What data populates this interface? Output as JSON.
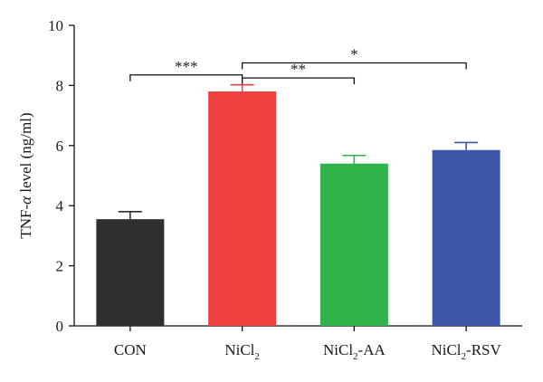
{
  "chart_data": {
    "type": "bar",
    "title": "",
    "xlabel": "",
    "ylabel": {
      "prefix": "TNF-",
      "symbol": "α",
      "suffix": " level (ng/ml)"
    },
    "ylim": [
      0,
      10
    ],
    "yticks": [
      0,
      2,
      4,
      6,
      8,
      10
    ],
    "grid": false,
    "categories": [
      {
        "base": "CON",
        "sub": "",
        "suffix": ""
      },
      {
        "base": "NiCl",
        "sub": "2",
        "suffix": ""
      },
      {
        "base": "NiCl",
        "sub": "2",
        "suffix": "-AA"
      },
      {
        "base": "NiCl",
        "sub": "2",
        "suffix": "-RSV"
      }
    ],
    "values": [
      3.55,
      7.8,
      5.4,
      5.85
    ],
    "errors": [
      0.25,
      0.22,
      0.27,
      0.25
    ],
    "colors": [
      "#2f2f2f",
      "#ef4040",
      "#2fb34a",
      "#3d55a8"
    ],
    "significance": [
      {
        "from": 0,
        "to": 1,
        "label": "***",
        "level": 8.35
      },
      {
        "from": 1,
        "to": 2,
        "label": "**",
        "level": 8.25
      },
      {
        "from": 1,
        "to": 3,
        "label": "*",
        "level": 8.75
      }
    ]
  }
}
